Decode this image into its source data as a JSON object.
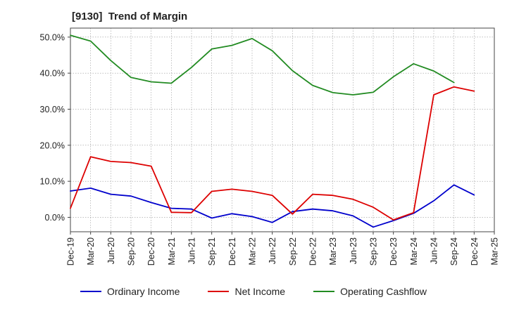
{
  "chart_data": {
    "type": "line",
    "title": "[9130]  Trend of Margin",
    "xlabel": "",
    "ylabel": "",
    "categories": [
      "Dec-19",
      "Mar-20",
      "Jun-20",
      "Sep-20",
      "Dec-20",
      "Mar-21",
      "Jun-21",
      "Sep-21",
      "Dec-21",
      "Mar-22",
      "Jun-22",
      "Sep-22",
      "Dec-22",
      "Mar-23",
      "Jun-23",
      "Sep-23",
      "Dec-23",
      "Mar-24",
      "Jun-24",
      "Sep-24",
      "Dec-24",
      "Mar-25"
    ],
    "ylim": [
      -4,
      52.5
    ],
    "yticks": [
      0,
      10,
      20,
      30,
      40,
      50
    ],
    "ytick_labels": [
      "0.0%",
      "10.0%",
      "20.0%",
      "30.0%",
      "40.0%",
      "50.0%"
    ],
    "grid": true,
    "legend_position": "bottom",
    "series": [
      {
        "name": "Ordinary Income",
        "color": "#0000cc",
        "values": [
          7.3,
          8.1,
          6.4,
          5.9,
          4.1,
          2.5,
          2.3,
          -0.2,
          1.0,
          0.2,
          -1.4,
          1.6,
          2.3,
          1.8,
          0.4,
          -2.7,
          -0.9,
          1.1,
          4.6,
          9.0,
          6.2,
          null
        ]
      },
      {
        "name": "Net Income",
        "color": "#dd0000",
        "values": [
          2.5,
          16.8,
          15.5,
          15.2,
          14.2,
          1.4,
          1.3,
          7.2,
          7.8,
          7.2,
          6.1,
          0.9,
          6.4,
          6.1,
          5.0,
          2.8,
          -0.7,
          1.3,
          34.0,
          36.2,
          35.0,
          null
        ]
      },
      {
        "name": "Operating Cashflow",
        "color": "#228b22",
        "values": [
          50.5,
          48.9,
          43.5,
          38.8,
          37.6,
          37.2,
          41.6,
          46.7,
          47.7,
          49.6,
          46.2,
          40.7,
          36.6,
          34.6,
          34.0,
          34.7,
          39.0,
          42.6,
          40.6,
          37.4,
          null,
          null
        ]
      }
    ]
  }
}
